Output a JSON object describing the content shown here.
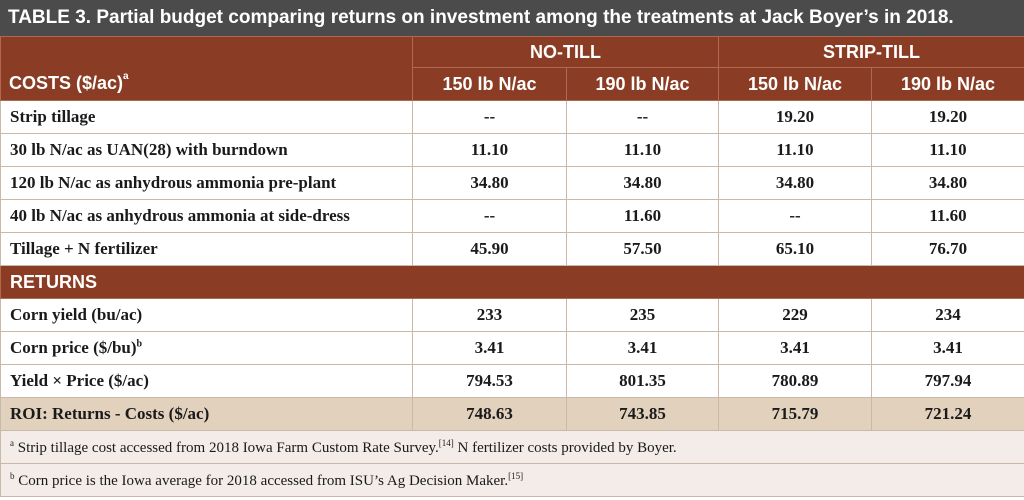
{
  "caption": {
    "table_no": "TABLE 3.",
    "text": "Partial budget comparing returns on investment among the treatments at Jack Boyer’s in 2018."
  },
  "header": {
    "costs_label": "COSTS ($/ac)",
    "costs_sup": "a",
    "groups": [
      "NO-TILL",
      "STRIP-TILL"
    ],
    "columns": [
      "150 lb N/ac",
      "190 lb N/ac",
      "150 lb N/ac",
      "190 lb N/ac"
    ]
  },
  "cost_rows": [
    {
      "label": "Strip tillage",
      "values": [
        "--",
        "--",
        "19.20",
        "19.20"
      ]
    },
    {
      "label": "30 lb N/ac as UAN(28) with burndown",
      "values": [
        "11.10",
        "11.10",
        "11.10",
        "11.10"
      ]
    },
    {
      "label": "120 lb N/ac as anhydrous ammonia pre-plant",
      "values": [
        "34.80",
        "34.80",
        "34.80",
        "34.80"
      ]
    },
    {
      "label": "40 lb N/ac as anhydrous ammonia at side-dress",
      "values": [
        "--",
        "11.60",
        "--",
        "11.60"
      ]
    },
    {
      "label": "Tillage + N fertilizer",
      "values": [
        "45.90",
        "57.50",
        "65.10",
        "76.70"
      ]
    }
  ],
  "returns_label": "RETURNS",
  "return_rows": [
    {
      "label": "Corn yield (bu/ac)",
      "values": [
        "233",
        "235",
        "229",
        "234"
      ]
    },
    {
      "label": "Corn price ($/bu)",
      "sup": "b",
      "values": [
        "3.41",
        "3.41",
        "3.41",
        "3.41"
      ]
    },
    {
      "label": "Yield × Price ($/ac)",
      "values": [
        "794.53",
        "801.35",
        "780.89",
        "797.94"
      ]
    }
  ],
  "roi_row": {
    "label": "ROI: Returns - Costs ($/ac)",
    "values": [
      "748.63",
      "743.85",
      "715.79",
      "721.24"
    ]
  },
  "notes": [
    {
      "sup": "a",
      "text": " Strip tillage cost accessed from 2018 Iowa Farm Custom Rate Survey.",
      "ref": "[14]",
      "text2": " N fertilizer costs provided by Boyer."
    },
    {
      "sup": "b",
      "text": " Corn price is the Iowa average for 2018 accessed from ISU’s Ag Decision Maker.",
      "ref": "[15]",
      "text2": ""
    }
  ]
}
